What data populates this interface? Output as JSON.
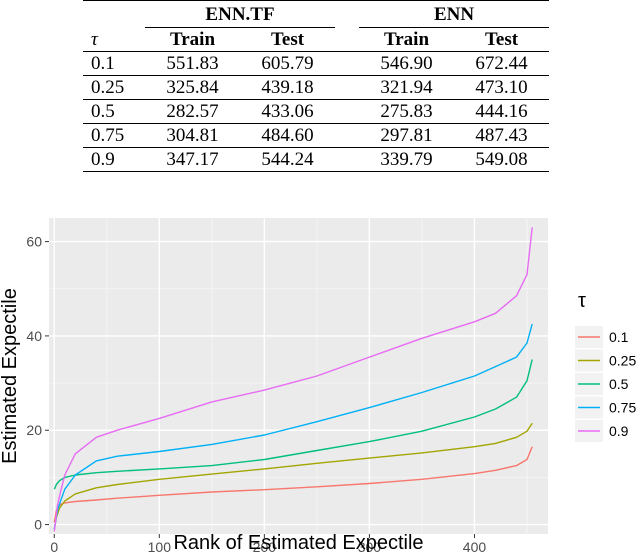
{
  "table": {
    "groups": [
      "ENN.TF",
      "ENN"
    ],
    "tau_header": "τ",
    "columns": [
      "Train",
      "Test",
      "Train",
      "Test"
    ],
    "rows": [
      {
        "tau": "0.1",
        "values": [
          "551.83",
          "605.79",
          "546.90",
          "672.44"
        ]
      },
      {
        "tau": "0.25",
        "values": [
          "325.84",
          "439.18",
          "321.94",
          "473.10"
        ]
      },
      {
        "tau": "0.5",
        "values": [
          "282.57",
          "433.06",
          "275.83",
          "444.16"
        ]
      },
      {
        "tau": "0.75",
        "values": [
          "304.81",
          "484.60",
          "297.81",
          "487.43"
        ]
      },
      {
        "tau": "0.9",
        "values": [
          "347.17",
          "544.24",
          "339.79",
          "549.08"
        ]
      }
    ]
  },
  "chart_data": {
    "type": "line",
    "xlabel": "Rank of Estimated Expectile",
    "ylabel": "Estimated Expectile",
    "xlim": [
      -5,
      470
    ],
    "ylim": [
      -2,
      65
    ],
    "xticks": [
      0,
      100,
      200,
      300,
      400
    ],
    "yticks": [
      0,
      20,
      40,
      60
    ],
    "grid": true,
    "legend": {
      "title": "τ",
      "placement": "right"
    },
    "series": [
      {
        "name": "0.1",
        "color": "#F8766D",
        "x": [
          0,
          2,
          5,
          10,
          20,
          40,
          60,
          100,
          150,
          200,
          250,
          300,
          350,
          400,
          420,
          440,
          450,
          455
        ],
        "y": [
          0.5,
          3.0,
          4.2,
          4.6,
          4.9,
          5.2,
          5.6,
          6.2,
          6.9,
          7.4,
          8.0,
          8.7,
          9.6,
          10.8,
          11.5,
          12.5,
          13.8,
          16.5
        ]
      },
      {
        "name": "0.25",
        "color": "#A3A500",
        "x": [
          0,
          2,
          5,
          10,
          20,
          40,
          60,
          100,
          150,
          200,
          250,
          300,
          350,
          400,
          420,
          440,
          450,
          455
        ],
        "y": [
          -1.0,
          1.5,
          3.5,
          5.0,
          6.5,
          7.8,
          8.5,
          9.6,
          10.7,
          11.8,
          13.0,
          14.1,
          15.2,
          16.5,
          17.2,
          18.5,
          19.8,
          21.5
        ]
      },
      {
        "name": "0.5",
        "color": "#00BF7D",
        "x": [
          0,
          2,
          5,
          10,
          20,
          40,
          60,
          100,
          150,
          200,
          250,
          300,
          350,
          400,
          420,
          440,
          450,
          455
        ],
        "y": [
          7.5,
          8.5,
          9.3,
          10.0,
          10.5,
          11.0,
          11.3,
          11.8,
          12.5,
          13.8,
          15.7,
          17.6,
          19.8,
          22.8,
          24.5,
          27.0,
          30.5,
          35.0
        ]
      },
      {
        "name": "0.75",
        "color": "#00B0F6",
        "x": [
          0,
          3,
          6,
          10,
          20,
          40,
          60,
          100,
          150,
          200,
          250,
          300,
          350,
          400,
          420,
          440,
          450,
          455
        ],
        "y": [
          -1.0,
          3.0,
          5.0,
          7.5,
          10.5,
          13.5,
          14.5,
          15.5,
          17.0,
          19.0,
          21.8,
          24.8,
          28.0,
          31.5,
          33.5,
          35.5,
          38.5,
          42.5
        ]
      },
      {
        "name": "0.9",
        "color": "#E76BF3",
        "x": [
          0,
          3,
          6,
          10,
          20,
          40,
          60,
          100,
          150,
          200,
          250,
          300,
          350,
          400,
          420,
          440,
          450,
          455
        ],
        "y": [
          -1.5,
          4.0,
          7.0,
          10.5,
          15.0,
          18.5,
          20.0,
          22.5,
          26.0,
          28.5,
          31.5,
          35.5,
          39.5,
          43.0,
          44.8,
          48.5,
          53.0,
          63.0
        ]
      }
    ]
  }
}
